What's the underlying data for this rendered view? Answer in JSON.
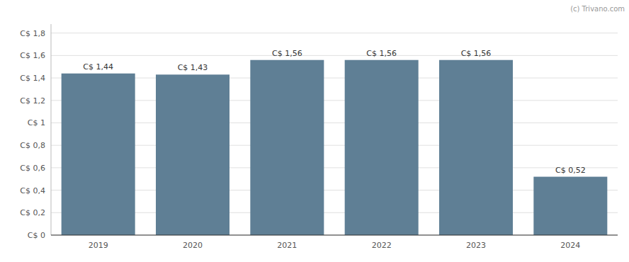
{
  "chart_data": {
    "type": "bar",
    "categories": [
      "2019",
      "2020",
      "2021",
      "2022",
      "2023",
      "2024"
    ],
    "values": [
      1.44,
      1.43,
      1.56,
      1.56,
      1.56,
      0.52
    ],
    "value_labels": [
      "C$ 1,44",
      "C$ 1,43",
      "C$ 1,56",
      "C$ 1,56",
      "C$ 1,56",
      "C$ 0,52"
    ],
    "data_labels": true,
    "color": "#5f7f95",
    "ylim": [
      0,
      1.88
    ],
    "yticks": [
      {
        "value": 0,
        "label": "C$ 0"
      },
      {
        "value": 0.2,
        "label": "C$ 0,2"
      },
      {
        "value": 0.4,
        "label": "C$ 0,4"
      },
      {
        "value": 0.6,
        "label": "C$ 0,6"
      },
      {
        "value": 0.8,
        "label": "C$ 0,8"
      },
      {
        "value": 1.0,
        "label": "C$ 1"
      },
      {
        "value": 1.2,
        "label": "C$ 1,2"
      },
      {
        "value": 1.4,
        "label": "C$ 1,4"
      },
      {
        "value": 1.6,
        "label": "C$ 1,6"
      },
      {
        "value": 1.8,
        "label": "C$ 1,8"
      }
    ],
    "grid": true,
    "annotations": [
      "(c) Trivano.com"
    ]
  }
}
